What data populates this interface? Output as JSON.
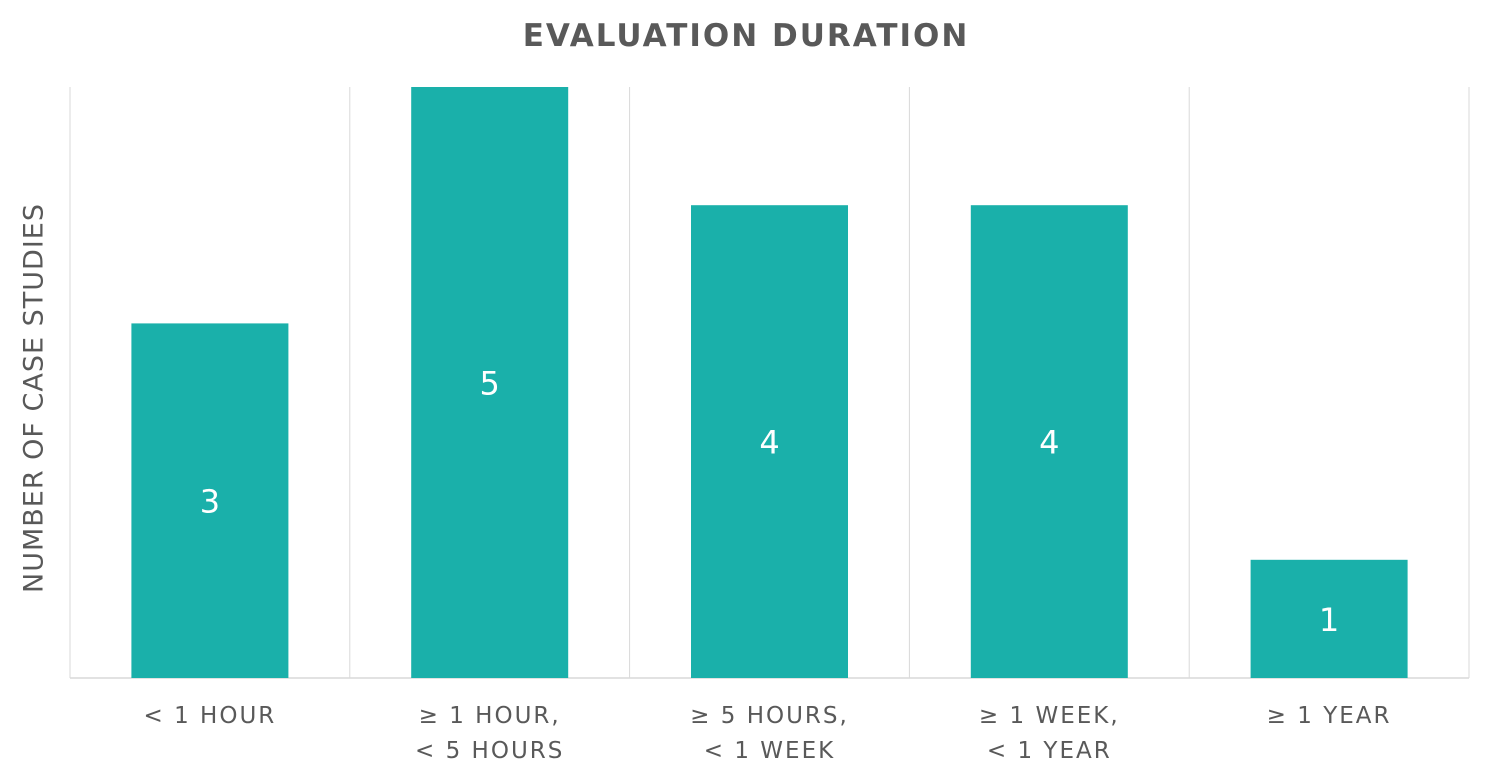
{
  "chart_data": {
    "type": "bar",
    "title": "EVALUATION DURATION",
    "xlabel": "",
    "ylabel": "NUMBER OF CASE STUDIES",
    "categories": [
      [
        "< 1 HOUR"
      ],
      [
        "≥ 1 HOUR,",
        "< 5 HOURS"
      ],
      [
        "≥ 5 HOURS,",
        "< 1 WEEK"
      ],
      [
        "≥ 1 WEEK,",
        "< 1 YEAR"
      ],
      [
        "≥ 1 YEAR"
      ]
    ],
    "values": [
      3,
      5,
      4,
      4,
      1
    ],
    "ylim": [
      0,
      5
    ],
    "grid": "vertical",
    "colors": {
      "bar": "#1ab0aa",
      "grid": "#d9d9d9",
      "text": "#595959",
      "label": "#ffffff"
    }
  }
}
